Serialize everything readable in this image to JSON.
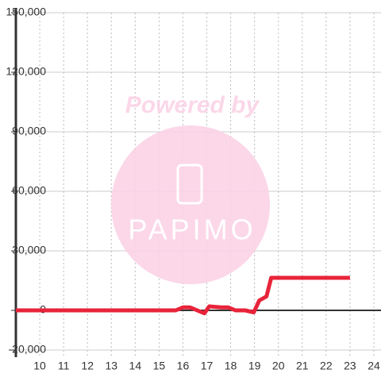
{
  "chart_data": {
    "type": "line",
    "watermark": {
      "top": "Powered by",
      "logo": "PAPIMO"
    },
    "x": [
      9,
      15.7,
      16,
      16.3,
      16.6,
      16.9,
      17.1,
      17.6,
      17.9,
      18.2,
      18.6,
      18.97,
      19.2,
      19.5,
      19.7,
      23
    ],
    "series": [
      {
        "color": "#e8243a",
        "values": [
          0,
          0,
          1500,
          1500,
          0,
          -1500,
          2000,
          1500,
          1500,
          0,
          0,
          -1000,
          5000,
          7000,
          16400,
          16400
        ]
      }
    ],
    "xlim": [
      9,
      24.3
    ],
    "xticks": [
      10,
      11,
      12,
      13,
      14,
      15,
      16,
      17,
      18,
      19,
      20,
      21,
      22,
      23,
      24
    ],
    "ylim": [
      -20000,
      150000
    ],
    "yticks": [
      {
        "value": -20000,
        "label": "-20,000"
      },
      0,
      {
        "value": 30000,
        "label": "30,000"
      },
      {
        "value": 60000,
        "label": "60,000"
      },
      {
        "value": 90000,
        "label": "90,000"
      },
      {
        "value": 120000,
        "label": "120,000"
      },
      {
        "value": 150000,
        "label": "150,000"
      }
    ],
    "grid": true
  }
}
